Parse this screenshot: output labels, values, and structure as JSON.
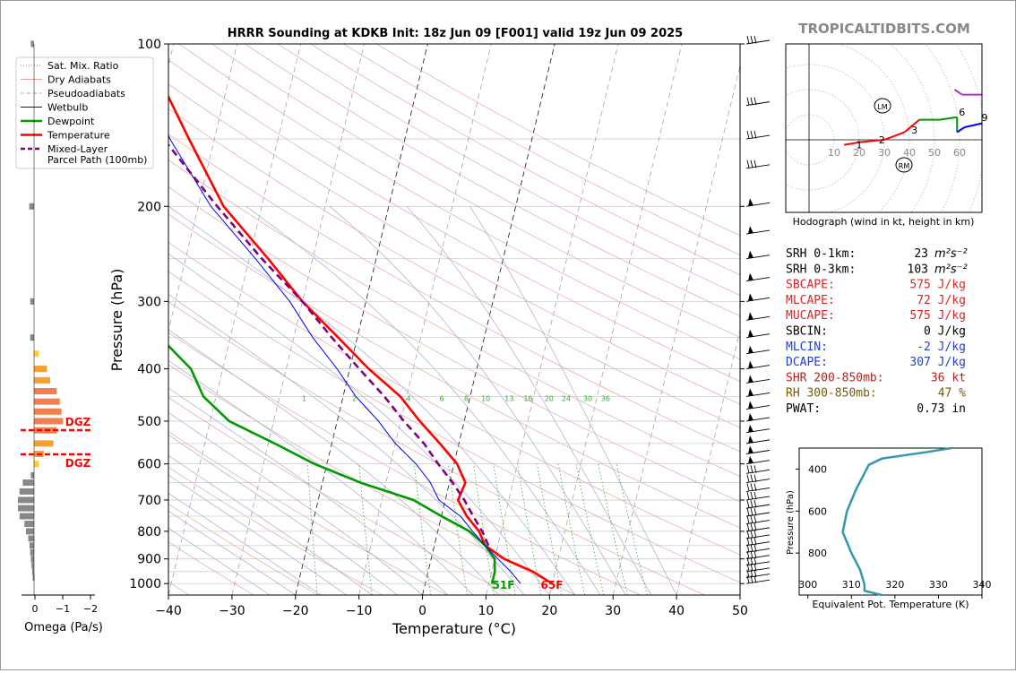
{
  "title": "HRRR Sounding at KDKB Init: 18z Jun 09 [F001] valid 19z Jun 09 2025",
  "brand": "TROPICALTIDBITS.COM",
  "skewt": {
    "xlabel": "Temperature (°C)",
    "ylabel": "Pressure (hPa)",
    "pressure_ticks": [
      100,
      200,
      300,
      400,
      500,
      600,
      700,
      800,
      900,
      1000
    ],
    "temp_ticks": [
      -40,
      -30,
      -20,
      -10,
      0,
      10,
      20,
      30,
      40,
      50
    ],
    "mixing_ratio_labels": [
      "1",
      "2",
      "4",
      "6",
      "8",
      "10",
      "13",
      "16",
      "20",
      "24",
      "30",
      "36"
    ],
    "sfc_dewpoint_label": "51F",
    "sfc_temp_label": "65F",
    "colors": {
      "temperature": "#ff0000",
      "dewpoint": "#009900",
      "wetbulb": "#0000ff",
      "parcel": "#800080"
    }
  },
  "legend": [
    {
      "label": "Sat. Mix. Ratio",
      "style": "dotted",
      "color": "#888888"
    },
    {
      "label": "Dry Adiabats",
      "style": "solid-thin",
      "color": "#e8a0a0"
    },
    {
      "label": "Pseudoadiabats",
      "style": "dashed",
      "color": "#aaaaaa"
    },
    {
      "label": "Wetbulb",
      "style": "solid-thin",
      "color": "#0000ff"
    },
    {
      "label": "Dewpoint",
      "style": "solid",
      "color": "#009900"
    },
    {
      "label": "Temperature",
      "style": "solid",
      "color": "#ff0000"
    },
    {
      "label": "Mixed-Layer\nParcel Path (100mb)",
      "label_line1": "Mixed-Layer",
      "label_line2": "Parcel Path (100mb)",
      "style": "dashed",
      "color": "#800080"
    }
  ],
  "omega": {
    "xlabel": "Omega (Pa/s)",
    "ticks": [
      "0",
      "−1",
      "−2"
    ],
    "dgz_label": "DGZ"
  },
  "hodograph": {
    "caption": "Hodograph (wind in kt, height in km)",
    "ring_labels": [
      "10",
      "20",
      "30",
      "40",
      "50",
      "60"
    ],
    "height_labels": [
      "1",
      "2",
      "3",
      "6",
      "9"
    ],
    "lm_label": "LM",
    "rm_label": "RM"
  },
  "indices": [
    {
      "name": "SRH 0-1km:",
      "value": "23",
      "unit_html": "m²s⁻²",
      "color": "#000000"
    },
    {
      "name": "SRH 0-3km:",
      "value": "103",
      "unit_html": "m²s⁻²",
      "color": "#000000"
    },
    {
      "name": "SBCAPE:",
      "value": "575 J/kg",
      "color": "#d62728"
    },
    {
      "name": "MLCAPE:",
      "value": "72 J/kg",
      "color": "#d62728"
    },
    {
      "name": "MUCAPE:",
      "value": "575 J/kg",
      "color": "#d62728"
    },
    {
      "name": "SBCIN:",
      "value": "0 J/kg",
      "color": "#000000"
    },
    {
      "name": "MLCIN:",
      "value": "-2 J/kg",
      "color": "#1f3fcf"
    },
    {
      "name": "DCAPE:",
      "value": "307 J/kg",
      "color": "#1f3fcf"
    },
    {
      "name": "SHR 200-850mb:",
      "value": "36 kt",
      "color": "#b22222"
    },
    {
      "name": "RH 300-850mb:",
      "value": "47 %",
      "color": "#7a5a00"
    },
    {
      "name": "PWAT:",
      "value": "0.73 in",
      "color": "#000000"
    }
  ],
  "theta_e_panel": {
    "xlabel": "Equivalent Pot. Temperature (K)",
    "ylabel": "Pressure (hPa)",
    "xticks": [
      "300",
      "310",
      "320",
      "330",
      "340"
    ],
    "yticks": [
      "400",
      "600",
      "800"
    ],
    "color": "#3399aa"
  },
  "chart_data": [
    {
      "type": "line",
      "title": "HRRR Sounding at KDKB Init: 18z Jun 09 [F001] valid 19z Jun 09 2025",
      "xlabel": "Temperature (°C)",
      "ylabel": "Pressure (hPa)",
      "xlim": [
        -40,
        50
      ],
      "ylim": [
        1050,
        100
      ],
      "log_y": true,
      "skew": true,
      "series": [
        {
          "name": "Temperature",
          "points": [
            [
              1000,
              20
            ],
            [
              950,
              16.5
            ],
            [
              900,
              11.5
            ],
            [
              850,
              8
            ],
            [
              800,
              6.5
            ],
            [
              750,
              4
            ],
            [
              700,
              2
            ],
            [
              650,
              2.5
            ],
            [
              600,
              0.5
            ],
            [
              550,
              -3
            ],
            [
              500,
              -7
            ],
            [
              450,
              -11
            ],
            [
              400,
              -17
            ],
            [
              350,
              -23
            ],
            [
              300,
              -30
            ],
            [
              250,
              -37
            ],
            [
              200,
              -46
            ],
            [
              150,
              -54
            ],
            [
              120,
              -60
            ],
            [
              100,
              -64
            ]
          ]
        },
        {
          "name": "Dewpoint",
          "points": [
            [
              1000,
              10.5
            ],
            [
              950,
              10.5
            ],
            [
              900,
              10
            ],
            [
              850,
              8
            ],
            [
              800,
              5
            ],
            [
              750,
              0
            ],
            [
              700,
              -5
            ],
            [
              650,
              -14
            ],
            [
              600,
              -22
            ],
            [
              550,
              -29
            ],
            [
              500,
              -37
            ],
            [
              450,
              -42
            ],
            [
              400,
              -45
            ],
            [
              350,
              -51
            ],
            [
              300,
              -60
            ],
            [
              250,
              -66
            ],
            [
              200,
              -72
            ],
            [
              170,
              -78
            ],
            [
              150,
              -80
            ],
            [
              120,
              -85
            ],
            [
              100,
              -89
            ]
          ]
        },
        {
          "name": "Wetbulb",
          "points": [
            [
              1000,
              15
            ],
            [
              950,
              13
            ],
            [
              900,
              10.5
            ],
            [
              850,
              8
            ],
            [
              800,
              5.5
            ],
            [
              750,
              3
            ],
            [
              700,
              -1
            ],
            [
              650,
              -3
            ],
            [
              600,
              -6
            ],
            [
              550,
              -10
            ],
            [
              500,
              -13.5
            ],
            [
              450,
              -18
            ],
            [
              400,
              -22
            ],
            [
              350,
              -27
            ],
            [
              300,
              -32
            ],
            [
              250,
              -39
            ],
            [
              200,
              -48
            ],
            [
              150,
              -57
            ],
            [
              120,
              -62
            ],
            [
              100,
              -66
            ]
          ]
        },
        {
          "name": "Mixed-Layer Parcel Path (100mb)",
          "points": [
            [
              850,
              8.5
            ],
            [
              800,
              7
            ],
            [
              750,
              5
            ],
            [
              700,
              3
            ],
            [
              650,
              0.5
            ],
            [
              600,
              -2.5
            ],
            [
              550,
              -5.5
            ],
            [
              500,
              -9.5
            ],
            [
              450,
              -13.5
            ],
            [
              400,
              -18.5
            ],
            [
              350,
              -24
            ],
            [
              300,
              -30
            ],
            [
              250,
              -38
            ],
            [
              200,
              -47
            ],
            [
              150,
              -58
            ],
            [
              130,
              -64
            ]
          ]
        }
      ]
    },
    {
      "type": "line",
      "title": "Hodograph (wind in kt, height in km)",
      "series": [
        {
          "name": "Hodograph",
          "points_u_v": [
            [
              14,
              -2
            ],
            [
              20,
              -1
            ],
            [
              30,
              0
            ],
            [
              38,
              3
            ],
            [
              44,
              8
            ],
            [
              52,
              8
            ],
            [
              59,
              9
            ],
            [
              59,
              3
            ],
            [
              62,
              5
            ],
            [
              71,
              7
            ],
            [
              70,
              18
            ],
            [
              61,
              18
            ],
            [
              58,
              20
            ]
          ]
        }
      ]
    },
    {
      "type": "line",
      "title": "",
      "xlabel": "Equivalent Pot. Temperature (K)",
      "ylabel": "Pressure (hPa)",
      "xlim": [
        298,
        340
      ],
      "ylim": [
        1000,
        300
      ],
      "series": [
        {
          "name": "Equivalent Pot. Temperature",
          "points": [
            [
              1000,
              317
            ],
            [
              980,
              313
            ],
            [
              950,
              313
            ],
            [
              880,
              312
            ],
            [
              800,
              310
            ],
            [
              700,
              308
            ],
            [
              600,
              309
            ],
            [
              500,
              311
            ],
            [
              420,
              313
            ],
            [
              380,
              314
            ],
            [
              350,
              317
            ],
            [
              320,
              327
            ],
            [
              300,
              333
            ]
          ]
        }
      ]
    }
  ]
}
